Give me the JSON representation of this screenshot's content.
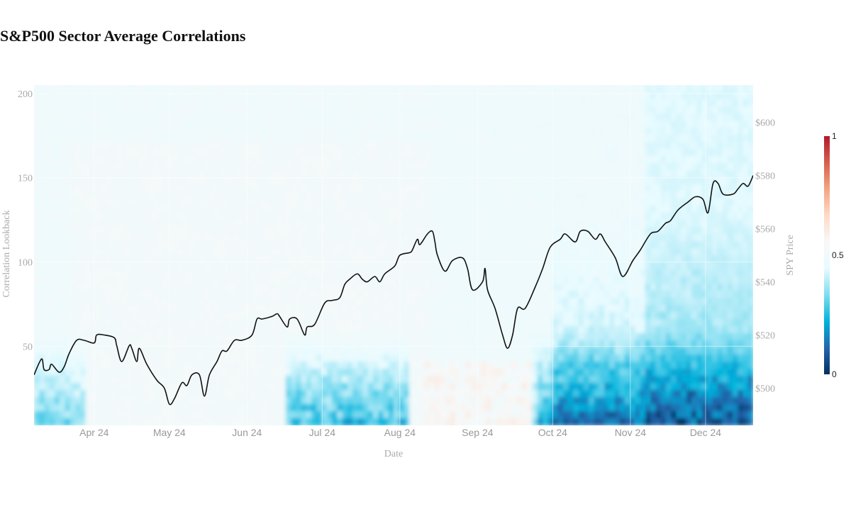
{
  "chart_data": {
    "type": "heatmap",
    "title": "S&P500 Sector Average Correlations",
    "xlabel": "Date",
    "ylabel": "Correlation Lookback",
    "y2label": "SPY Price",
    "x_ticks": [
      "Apr 24",
      "May 24",
      "Jun 24",
      "Jul 24",
      "Aug 24",
      "Sep 24",
      "Oct 24",
      "Nov 24",
      "Dec 24"
    ],
    "x_range": [
      "2024-03-08",
      "2024-12-20"
    ],
    "y_ticks": [
      50,
      100,
      150,
      200
    ],
    "ylim": [
      3,
      205
    ],
    "y2_ticks": [
      "$500",
      "$520",
      "$540",
      "$560",
      "$580",
      "$600"
    ],
    "y2_tick_values": [
      500,
      520,
      540,
      560,
      580,
      600
    ],
    "y2lim": [
      486,
      614
    ],
    "colorscale": [
      "#053061",
      "#2166ac",
      "#00b3dc",
      "#7fdcf0",
      "#e8fbff",
      "#f8f8f8",
      "#fddbc7",
      "#f4a582",
      "#d6604d",
      "#b2182b"
    ],
    "colorbar": {
      "ticks": [
        "0",
        "0.5",
        "1"
      ],
      "tick_values": [
        0,
        0.5,
        1
      ]
    },
    "heatmap_description": "Most cells near 0.45-0.5 (pale cyan/white); lower lookbacks in Jul-Aug and Oct-Dec drop to 0.2-0.35 (deeper blue); small warm patches near Apr-May and Aug-Sep at short lookbacks.",
    "series": [
      {
        "name": "SPY",
        "type": "line",
        "color": "#111111",
        "points": [
          [
            "2024-03-08",
            505.0
          ],
          [
            "2024-03-11",
            511.0
          ],
          [
            "2024-03-12",
            507.0
          ],
          [
            "2024-03-14",
            507.0
          ],
          [
            "2024-03-15",
            509.0
          ],
          [
            "2024-03-18",
            506.0
          ],
          [
            "2024-03-20",
            508.0
          ],
          [
            "2024-03-22",
            513.0
          ],
          [
            "2024-03-25",
            518.0
          ],
          [
            "2024-03-28",
            518.0
          ],
          [
            "2024-04-01",
            517.0
          ],
          [
            "2024-04-02",
            520.0
          ],
          [
            "2024-04-05",
            520.0
          ],
          [
            "2024-04-09",
            519.0
          ],
          [
            "2024-04-10",
            516.0
          ],
          [
            "2024-04-12",
            510.0
          ],
          [
            "2024-04-15",
            516.0
          ],
          [
            "2024-04-16",
            515.0
          ],
          [
            "2024-04-18",
            510.0
          ],
          [
            "2024-04-19",
            515.0
          ],
          [
            "2024-04-22",
            509.0
          ],
          [
            "2024-04-26",
            503.0
          ],
          [
            "2024-04-29",
            500.0
          ],
          [
            "2024-05-01",
            494.0
          ],
          [
            "2024-05-03",
            496.0
          ],
          [
            "2024-05-06",
            502.0
          ],
          [
            "2024-05-08",
            501.0
          ],
          [
            "2024-05-10",
            505.0
          ],
          [
            "2024-05-13",
            505.0
          ],
          [
            "2024-05-15",
            497.0
          ],
          [
            "2024-05-17",
            505.0
          ],
          [
            "2024-05-20",
            510.0
          ],
          [
            "2024-05-22",
            514.0
          ],
          [
            "2024-05-24",
            514.0
          ],
          [
            "2024-05-27",
            518.0
          ],
          [
            "2024-05-30",
            518.0
          ],
          [
            "2024-06-03",
            520.0
          ],
          [
            "2024-06-05",
            526.0
          ],
          [
            "2024-06-07",
            526.0
          ],
          [
            "2024-06-11",
            527.0
          ],
          [
            "2024-06-13",
            528.0
          ],
          [
            "2024-06-14",
            527.0
          ],
          [
            "2024-06-17",
            523.0
          ],
          [
            "2024-06-18",
            526.0
          ],
          [
            "2024-06-21",
            526.0
          ],
          [
            "2024-06-24",
            520.0
          ],
          [
            "2024-06-25",
            523.0
          ],
          [
            "2024-06-28",
            524.0
          ],
          [
            "2024-07-02",
            532.0
          ],
          [
            "2024-07-05",
            533.0
          ],
          [
            "2024-07-08",
            534.0
          ],
          [
            "2024-07-10",
            539.0
          ],
          [
            "2024-07-12",
            541.0
          ],
          [
            "2024-07-15",
            543.0
          ],
          [
            "2024-07-17",
            541.0
          ],
          [
            "2024-07-19",
            540.0
          ],
          [
            "2024-07-22",
            542.0
          ],
          [
            "2024-07-24",
            540.0
          ],
          [
            "2024-07-26",
            543.0
          ],
          [
            "2024-07-30",
            546.0
          ],
          [
            "2024-08-01",
            550.0
          ],
          [
            "2024-08-05",
            551.0
          ],
          [
            "2024-08-06",
            552.0
          ],
          [
            "2024-08-08",
            556.0
          ],
          [
            "2024-08-09",
            554.0
          ],
          [
            "2024-08-12",
            558.0
          ],
          [
            "2024-08-14",
            559.0
          ],
          [
            "2024-08-15",
            555.0
          ],
          [
            "2024-08-16",
            550.0
          ],
          [
            "2024-08-19",
            544.0
          ],
          [
            "2024-08-22",
            548.0
          ],
          [
            "2024-08-26",
            549.0
          ],
          [
            "2024-08-28",
            545.0
          ],
          [
            "2024-08-30",
            537.0
          ],
          [
            "2024-09-03",
            540.0
          ],
          [
            "2024-09-04",
            545.0
          ],
          [
            "2024-09-05",
            537.0
          ],
          [
            "2024-09-08",
            530.0
          ],
          [
            "2024-09-11",
            520.0
          ],
          [
            "2024-09-13",
            515.0
          ],
          [
            "2024-09-15",
            520.0
          ],
          [
            "2024-09-17",
            530.0
          ],
          [
            "2024-09-20",
            530.0
          ],
          [
            "2024-09-24",
            538.0
          ],
          [
            "2024-09-27",
            545.0
          ],
          [
            "2024-09-30",
            553.0
          ],
          [
            "2024-10-04",
            556.0
          ],
          [
            "2024-10-06",
            558.0
          ],
          [
            "2024-10-10",
            555.0
          ],
          [
            "2024-10-12",
            559.0
          ],
          [
            "2024-10-15",
            559.0
          ],
          [
            "2024-10-18",
            556.0
          ],
          [
            "2024-10-20",
            558.0
          ],
          [
            "2024-10-22",
            555.0
          ],
          [
            "2024-10-26",
            549.0
          ],
          [
            "2024-10-29",
            542.0
          ],
          [
            "2024-11-02",
            548.0
          ],
          [
            "2024-11-05",
            552.0
          ],
          [
            "2024-11-09",
            558.0
          ],
          [
            "2024-11-12",
            559.0
          ],
          [
            "2024-11-15",
            562.0
          ],
          [
            "2024-11-17",
            563.0
          ],
          [
            "2024-11-20",
            567.0
          ],
          [
            "2024-11-24",
            570.0
          ],
          [
            "2024-11-27",
            572.0
          ],
          [
            "2024-11-30",
            571.0
          ],
          [
            "2024-12-02",
            566.0
          ],
          [
            "2024-12-04",
            577.0
          ],
          [
            "2024-12-06",
            577.0
          ],
          [
            "2024-12-08",
            573.0
          ],
          [
            "2024-12-12",
            573.0
          ],
          [
            "2024-12-14",
            575.0
          ],
          [
            "2024-12-16",
            577.0
          ],
          [
            "2024-12-18",
            576.0
          ],
          [
            "2024-12-20",
            580.0
          ]
        ]
      }
    ]
  }
}
